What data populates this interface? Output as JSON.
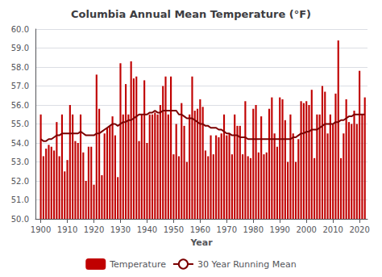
{
  "chart_data": {
    "type": "bar",
    "title": "Columbia Annual Mean Temperature (°F)",
    "xlabel": "Year",
    "x": [
      1900,
      1901,
      1902,
      1903,
      1904,
      1905,
      1906,
      1907,
      1908,
      1909,
      1910,
      1911,
      1912,
      1913,
      1914,
      1915,
      1916,
      1917,
      1918,
      1919,
      1920,
      1921,
      1922,
      1923,
      1924,
      1925,
      1926,
      1927,
      1928,
      1929,
      1930,
      1931,
      1932,
      1933,
      1934,
      1935,
      1936,
      1937,
      1938,
      1939,
      1940,
      1941,
      1942,
      1943,
      1944,
      1945,
      1946,
      1947,
      1948,
      1949,
      1950,
      1951,
      1952,
      1953,
      1954,
      1955,
      1956,
      1957,
      1958,
      1959,
      1960,
      1961,
      1962,
      1963,
      1964,
      1965,
      1966,
      1967,
      1968,
      1969,
      1970,
      1971,
      1972,
      1973,
      1974,
      1975,
      1976,
      1977,
      1978,
      1979,
      1980,
      1981,
      1982,
      1983,
      1984,
      1985,
      1986,
      1987,
      1988,
      1989,
      1990,
      1991,
      1992,
      1993,
      1994,
      1995,
      1996,
      1997,
      1998,
      1999,
      2000,
      2001,
      2002,
      2003,
      2004,
      2005,
      2006,
      2007,
      2008,
      2009,
      2010,
      2011,
      2012,
      2013,
      2014,
      2015,
      2016,
      2017,
      2018,
      2019,
      2020,
      2021,
      2022
    ],
    "series": [
      {
        "name": "Temperature",
        "type": "bar",
        "color": "#c00000",
        "values": [
          55.5,
          53.3,
          53.7,
          53.9,
          53.8,
          53.6,
          55.1,
          53.3,
          55.5,
          52.5,
          53.1,
          56.0,
          55.5,
          54.1,
          54.0,
          55.5,
          53.5,
          52.0,
          53.8,
          53.8,
          51.8,
          57.6,
          55.8,
          52.3,
          54.5,
          54.8,
          54.9,
          55.4,
          54.4,
          52.2,
          58.2,
          55.5,
          57.1,
          55.5,
          58.3,
          57.4,
          57.5,
          54.1,
          55.5,
          57.3,
          54.0,
          55.5,
          55.5,
          55.6,
          55.5,
          56.0,
          57.0,
          57.5,
          55.5,
          57.5,
          53.4,
          55.0,
          53.3,
          56.1,
          54.9,
          53.0,
          55.5,
          57.5,
          55.7,
          55.8,
          56.3,
          55.9,
          53.6,
          53.3,
          54.4,
          53.4,
          54.4,
          54.3,
          54.5,
          55.5,
          54.4,
          54.5,
          53.4,
          55.5,
          54.9,
          54.9,
          53.4,
          56.2,
          53.3,
          53.2,
          55.8,
          56.0,
          53.5,
          55.4,
          53.4,
          53.5,
          55.8,
          56.4,
          54.5,
          53.8,
          56.4,
          56.3,
          55.2,
          53.0,
          55.5,
          54.5,
          53.0,
          54.2,
          56.2,
          56.1,
          56.2,
          56.0,
          56.8,
          53.2,
          55.5,
          55.5,
          57.0,
          56.7,
          54.5,
          55.5,
          55.0,
          56.6,
          59.4,
          53.2,
          54.5,
          56.3,
          55.1,
          55.0,
          55.7,
          55.0,
          57.8,
          55.5,
          56.4
        ]
      },
      {
        "name": "30 Year Running Mean",
        "type": "line",
        "color": "#7b0000",
        "values": [
          54.2,
          54.1,
          54.1,
          54.2,
          54.2,
          54.3,
          54.4,
          54.4,
          54.5,
          54.5,
          54.5,
          54.5,
          54.5,
          54.5,
          54.5,
          54.6,
          54.5,
          54.4,
          54.4,
          54.4,
          54.4,
          54.5,
          54.5,
          54.6,
          54.7,
          54.8,
          54.9,
          55.0,
          55.0,
          54.9,
          55.0,
          55.1,
          55.1,
          55.2,
          55.2,
          55.3,
          55.4,
          55.5,
          55.5,
          55.5,
          55.5,
          55.6,
          55.6,
          55.7,
          55.6,
          55.6,
          55.7,
          55.7,
          55.7,
          55.7,
          55.7,
          55.7,
          55.5,
          55.5,
          55.4,
          55.3,
          55.3,
          55.3,
          55.2,
          55.1,
          55.0,
          55.0,
          54.9,
          54.9,
          54.8,
          54.8,
          54.8,
          54.7,
          54.7,
          54.6,
          54.5,
          54.5,
          54.4,
          54.4,
          54.4,
          54.3,
          54.3,
          54.3,
          54.2,
          54.2,
          54.2,
          54.2,
          54.2,
          54.2,
          54.2,
          54.2,
          54.2,
          54.2,
          54.2,
          54.2,
          54.2,
          54.2,
          54.2,
          54.2,
          54.2,
          54.3,
          54.3,
          54.4,
          54.5,
          54.5,
          54.6,
          54.6,
          54.7,
          54.7,
          54.7,
          54.8,
          54.9,
          55.0,
          55.0,
          55.0,
          55.0,
          55.1,
          55.1,
          55.2,
          55.2,
          55.3,
          55.4,
          55.4,
          55.5,
          55.5,
          55.5,
          55.5,
          55.5
        ]
      }
    ],
    "xlim": [
      1898,
      2023
    ],
    "xticks": [
      1900,
      1910,
      1920,
      1930,
      1940,
      1950,
      1960,
      1970,
      1980,
      1990,
      2000,
      2010,
      2020
    ],
    "ylim": [
      50.0,
      60.0
    ],
    "yticks": [
      {
        "value": 50,
        "label": "50.0"
      },
      {
        "value": 51,
        "label": "51.0"
      },
      {
        "value": 52,
        "label": "52.0"
      },
      {
        "value": 53,
        "label": "53.0"
      },
      {
        "value": 54,
        "label": "54.0"
      },
      {
        "value": 55,
        "label": "55.0"
      },
      {
        "value": 56,
        "label": "56.0"
      },
      {
        "value": 57,
        "label": "57.0"
      },
      {
        "value": 58,
        "label": "58.0"
      },
      {
        "value": 59,
        "label": "59.0"
      },
      {
        "value": 60,
        "label": "60.0"
      }
    ],
    "grid": true,
    "legend": "bottom"
  }
}
